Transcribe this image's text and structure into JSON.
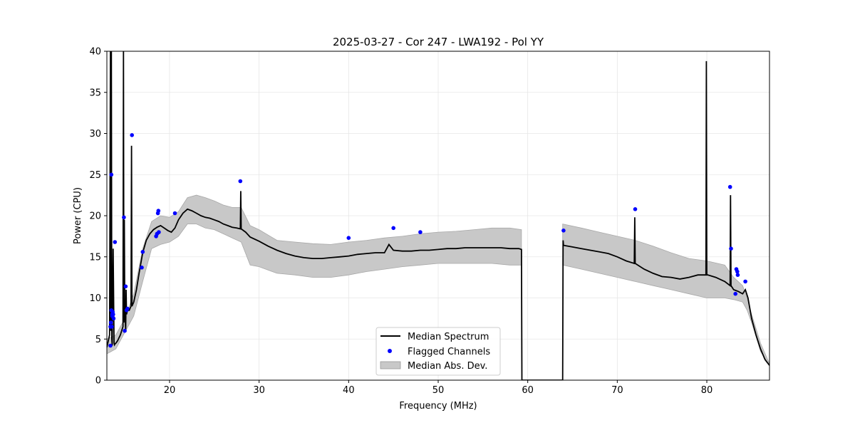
{
  "chart_data": {
    "type": "line",
    "title": "2025-03-27 - Cor 247 - LWA192 - Pol YY",
    "xlabel": "Frequency (MHz)",
    "ylabel": "Power (CPU)",
    "xlim": [
      13,
      87
    ],
    "ylim": [
      0,
      40
    ],
    "xticks": [
      20,
      30,
      40,
      50,
      60,
      70,
      80
    ],
    "yticks": [
      0,
      5,
      10,
      15,
      20,
      25,
      30,
      35,
      40
    ],
    "grid": true,
    "legend_position": "lower-center",
    "legend": [
      {
        "label": "Median Spectrum",
        "kind": "line",
        "color": "#000000"
      },
      {
        "label": "Flagged Channels",
        "kind": "marker",
        "color": "#0000ff"
      },
      {
        "label": "Median Abs. Dev.",
        "kind": "band",
        "color": "#c8c8c8"
      }
    ],
    "series": [
      {
        "name": "Median Spectrum",
        "color": "#000000",
        "x": [
          13.0,
          13.3,
          13.4,
          13.45,
          13.5,
          13.55,
          13.6,
          13.7,
          13.8,
          13.85,
          13.9,
          14.0,
          14.2,
          14.5,
          14.8,
          14.85,
          14.9,
          14.95,
          15.0,
          15.1,
          15.15,
          15.2,
          15.3,
          15.5,
          15.7,
          15.75,
          15.8,
          16.0,
          16.3,
          16.6,
          17.0,
          17.4,
          17.8,
          18.2,
          18.6,
          19.0,
          19.4,
          19.8,
          20.2,
          20.6,
          21.0,
          21.5,
          22.0,
          22.5,
          23.0,
          23.5,
          24.0,
          24.5,
          25.0,
          25.5,
          26.0,
          26.5,
          27.0,
          27.5,
          27.9,
          27.95,
          28.0,
          28.5,
          29.0,
          30.0,
          31.0,
          32.0,
          33.0,
          34.0,
          35.0,
          36.0,
          37.0,
          38.0,
          39.0,
          40.0,
          41.0,
          42.0,
          43.0,
          44.0,
          44.5,
          45.0,
          46.0,
          47.0,
          48.0,
          49.0,
          50.0,
          51.0,
          52.0,
          53.0,
          54.0,
          55.0,
          56.0,
          57.0,
          58.0,
          59.0,
          59.3,
          59.35,
          60.0,
          62.0,
          63.9,
          63.95,
          64.0,
          65.0,
          66.0,
          67.0,
          68.0,
          69.0,
          70.0,
          71.0,
          71.9,
          71.95,
          72.0,
          73.0,
          74.0,
          75.0,
          76.0,
          77.0,
          78.0,
          79.0,
          79.9,
          79.95,
          80.0,
          80.1,
          81.0,
          82.0,
          82.6,
          82.65,
          82.7,
          83.0,
          83.5,
          84.0,
          84.3,
          84.6,
          85.0,
          85.5,
          86.0,
          86.5,
          87.0
        ],
        "y": [
          4.0,
          5.5,
          40.0,
          6.0,
          40.0,
          5.0,
          4.2,
          16.0,
          4.5,
          4.3,
          4.4,
          4.5,
          4.8,
          5.5,
          6.5,
          40.0,
          7.0,
          19.5,
          8.5,
          6.0,
          11.0,
          8.0,
          8.5,
          8.5,
          9.0,
          28.5,
          9.0,
          9.5,
          11.0,
          13.0,
          15.5,
          17.0,
          17.8,
          18.3,
          18.6,
          18.8,
          18.5,
          18.2,
          18.0,
          18.5,
          19.5,
          20.3,
          20.8,
          20.6,
          20.3,
          20.0,
          19.8,
          19.7,
          19.5,
          19.3,
          19.0,
          18.8,
          18.6,
          18.5,
          18.4,
          23.0,
          18.4,
          18.0,
          17.4,
          16.9,
          16.3,
          15.8,
          15.4,
          15.1,
          14.9,
          14.8,
          14.8,
          14.9,
          15.0,
          15.1,
          15.3,
          15.4,
          15.5,
          15.5,
          16.5,
          15.8,
          15.7,
          15.7,
          15.8,
          15.8,
          15.9,
          16.0,
          16.0,
          16.1,
          16.1,
          16.1,
          16.1,
          16.1,
          16.0,
          16.0,
          15.9,
          0.0,
          0.0,
          0.0,
          0.0,
          17.0,
          16.4,
          16.2,
          16.0,
          15.8,
          15.6,
          15.4,
          15.0,
          14.5,
          14.2,
          19.8,
          14.2,
          13.5,
          13.0,
          12.6,
          12.5,
          12.3,
          12.5,
          12.8,
          12.8,
          38.8,
          12.8,
          12.8,
          12.5,
          12.0,
          11.5,
          22.5,
          11.5,
          11.0,
          10.8,
          10.5,
          11.0,
          10.0,
          7.5,
          5.5,
          3.8,
          2.5,
          1.8
        ]
      },
      {
        "name": "Median Abs. Dev.",
        "color": "#c8c8c8",
        "x": [
          13.0,
          14.0,
          15.0,
          16.0,
          17.0,
          18.0,
          19.0,
          20.0,
          21.0,
          22.0,
          23.0,
          24.0,
          25.0,
          26.0,
          27.0,
          28.0,
          29.0,
          30.0,
          32.0,
          34.0,
          36.0,
          38.0,
          40.0,
          42.0,
          44.0,
          46.0,
          48.0,
          50.0,
          52.0,
          54.0,
          56.0,
          58.0,
          59.3,
          63.9,
          66.0,
          68.0,
          70.0,
          72.0,
          74.0,
          76.0,
          78.0,
          80.0,
          82.0,
          83.0,
          84.0,
          84.5,
          85.0,
          86.0,
          87.0
        ],
        "upper": [
          5.0,
          5.5,
          7.5,
          10.5,
          16.0,
          19.3,
          20.0,
          19.8,
          20.5,
          22.2,
          22.5,
          22.2,
          21.8,
          21.3,
          21.0,
          21.0,
          18.8,
          18.3,
          17.0,
          16.8,
          16.6,
          16.5,
          16.8,
          17.0,
          17.3,
          17.5,
          17.8,
          18.0,
          18.1,
          18.3,
          18.5,
          18.5,
          18.3,
          19.0,
          18.5,
          18.0,
          17.5,
          17.0,
          16.3,
          15.5,
          14.8,
          14.5,
          14.0,
          12.5,
          11.5,
          10.0,
          8.0,
          4.5,
          2.0
        ],
        "lower": [
          3.2,
          3.8,
          5.8,
          7.8,
          12.0,
          16.0,
          16.5,
          16.8,
          17.5,
          19.0,
          19.0,
          18.5,
          18.3,
          17.8,
          17.3,
          16.8,
          14.0,
          13.8,
          13.0,
          12.8,
          12.5,
          12.5,
          12.8,
          13.2,
          13.5,
          13.8,
          14.0,
          14.2,
          14.2,
          14.2,
          14.2,
          14.0,
          14.0,
          14.0,
          13.5,
          13.0,
          12.5,
          12.0,
          11.5,
          11.0,
          10.5,
          10.0,
          10.0,
          9.8,
          9.5,
          8.5,
          7.0,
          3.5,
          1.8
        ]
      },
      {
        "name": "Flagged Channels",
        "color": "#0000ff",
        "x": [
          13.4,
          13.4,
          13.45,
          13.5,
          13.5,
          13.55,
          13.6,
          13.6,
          13.65,
          13.7,
          13.75,
          13.9,
          14.9,
          15.0,
          15.1,
          15.2,
          15.3,
          15.8,
          16.9,
          17.0,
          18.5,
          18.6,
          18.7,
          18.75,
          18.8,
          20.6,
          27.9,
          40.0,
          45.0,
          48.0,
          64.0,
          72.0,
          82.6,
          82.7,
          83.2,
          83.3,
          83.4,
          83.45,
          84.3
        ],
        "y": [
          4.2,
          6.5,
          7.0,
          8.5,
          25.0,
          6.5,
          7.8,
          8.0,
          8.3,
          8.0,
          7.5,
          16.8,
          19.8,
          6.0,
          11.4,
          8.5,
          8.7,
          29.8,
          13.7,
          15.6,
          17.5,
          17.8,
          20.3,
          20.6,
          18.0,
          20.3,
          24.2,
          17.3,
          18.5,
          18.0,
          18.2,
          20.8,
          23.5,
          16.0,
          10.5,
          13.5,
          13.2,
          12.8,
          12.0
        ]
      }
    ]
  }
}
